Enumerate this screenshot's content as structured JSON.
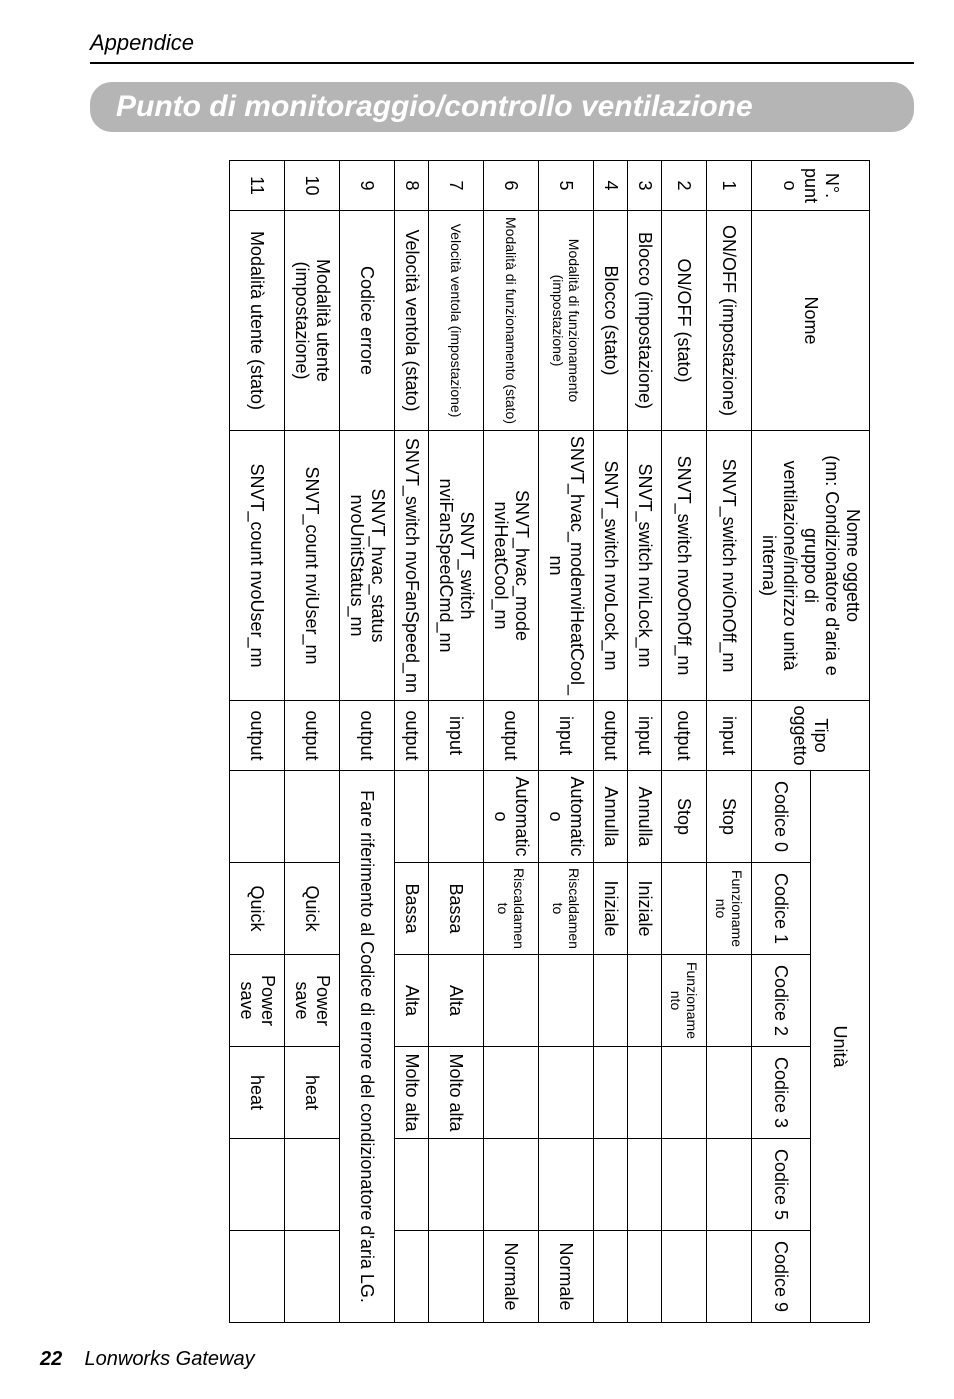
{
  "header_label": "Appendice",
  "title_bar_text": "Punto di monitoraggio/controllo ventilazione",
  "table": {
    "col_headers": {
      "no_line1": "N°.",
      "no_line2": "punto",
      "nome": "Nome",
      "oggetto_line1": "Nome oggetto",
      "oggetto_line2": "(nn: Condizionatore d'aria e gruppo di",
      "oggetto_line3": "ventilazione/indirizzo unità interna)",
      "tipo_line1": "Tipo",
      "tipo_line2": "oggetto",
      "unita": "Unità",
      "codice0": "Codice 0",
      "codice1": "Codice 1",
      "codice2": "Codice 2",
      "codice3": "Codice 3",
      "codice5": "Codice 5",
      "codice9": "Codice 9"
    },
    "rows": [
      {
        "no": "1",
        "nome": "ON/OFF (impostazione)",
        "oggetto": "SNVT_switch nviOnOff_nn",
        "tipo": "input",
        "c0": "Stop",
        "c1": "Funzionamento",
        "c2": "",
        "c3": "",
        "c5": "",
        "c9": ""
      },
      {
        "no": "2",
        "nome": "ON/OFF (stato)",
        "oggetto": "SNVT_switch nvoOnOff_nn",
        "tipo": "output",
        "c0": "Stop",
        "c1": "",
        "c2": "Funzionamento",
        "c3": "",
        "c5": "",
        "c9": ""
      },
      {
        "no": "3",
        "nome": "Blocco (impostazione)",
        "oggetto": "SNVT_switch nviLock_nn",
        "tipo": "input",
        "c0": "Annulla",
        "c1": "Iniziale",
        "c2": "",
        "c3": "",
        "c5": "",
        "c9": ""
      },
      {
        "no": "4",
        "nome": "Blocco (stato)",
        "oggetto": "SNVT_switch nvoLock_nn",
        "tipo": "output",
        "c0": "Annulla",
        "c1": "Iniziale",
        "c2": "",
        "c3": "",
        "c5": "",
        "c9": ""
      },
      {
        "no": "5",
        "nome": "Modalità di funzionamento (impostazione)",
        "oggetto": "SNVT_hvac_modenviHeatCool_nn",
        "tipo": "input",
        "c0": "Automatico",
        "c1": "Riscaldamento",
        "c2": "",
        "c3": "",
        "c5": "",
        "c9": "Normale"
      },
      {
        "no": "6",
        "nome": "Modalità di funzionamento (stato)",
        "oggetto": "SNVT_hvac_mode nviHeatCool_nn",
        "tipo": "output",
        "c0": "Automatico",
        "c1": "Riscaldamento",
        "c2": "",
        "c3": "",
        "c5": "",
        "c9": "Normale"
      },
      {
        "no": "7",
        "nome": "Velocità ventola (impostazione)",
        "oggetto": "SNVT_switch nviFanSpeedCmd_nn",
        "tipo": "input",
        "c0": "",
        "c1": "Bassa",
        "c2": "Alta",
        "c3": "Molto alta",
        "c5": "",
        "c9": ""
      },
      {
        "no": "8",
        "nome": "Velocità ventola (stato)",
        "oggetto": "SNVT_switch nvoFanSpeed_nn",
        "tipo": "output",
        "c0": "",
        "c1": "Bassa",
        "c2": "Alta",
        "c3": "Molto alta",
        "c5": "",
        "c9": ""
      },
      {
        "no": "9",
        "nome": "Codice errore",
        "oggetto": "SNVT_hvac_status nvoUnitStatus_nn",
        "tipo": "output",
        "merged": "Fare riferimento al Codice di errore del condizionatore d'aria LG."
      },
      {
        "no": "10",
        "nome": "Modalità utente (impostazione)",
        "oggetto": "SNVT_count nviUser_nn",
        "tipo": "output",
        "c0": "",
        "c1": "Quick",
        "c2": "Power save",
        "c3": "heat",
        "c5": "",
        "c9": ""
      },
      {
        "no": "11",
        "nome": "Modalità utente (stato)",
        "oggetto": "SNVT_count nvoUser_nn",
        "tipo": "output",
        "c0": "",
        "c1": "Quick",
        "c2": "Power save",
        "c3": "heat",
        "c5": "",
        "c9": ""
      }
    ]
  },
  "footer_page": "22",
  "footer_text": "Lonworks Gateway"
}
